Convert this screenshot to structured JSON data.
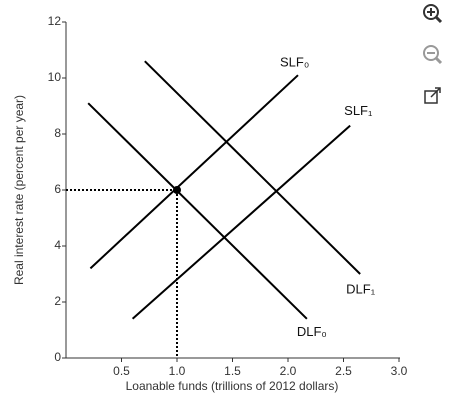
{
  "chart_data": {
    "type": "line",
    "x_label": "Loanable funds (trillions of 2012 dollars)",
    "y_label": "Real interest rate (percent per year)",
    "xlim": [
      0,
      3
    ],
    "ylim": [
      0,
      12
    ],
    "xticks": [
      0.5,
      {
        "value": 1,
        "label": "1.0"
      },
      1.5,
      {
        "value": 2,
        "label": "2.0"
      },
      2.5,
      {
        "value": 3,
        "label": "3.0"
      }
    ],
    "yticks": [
      0,
      2,
      4,
      6,
      8,
      10,
      12
    ],
    "color": "#000000",
    "series": [
      {
        "name": "SLF₀",
        "x": [
          0.22,
          2.09
        ],
        "values": [
          3.2,
          10.1
        ]
      },
      {
        "name": "SLF₁",
        "x": [
          0.6,
          2.56
        ],
        "values": [
          1.4,
          8.3
        ]
      },
      {
        "name": "DLF₀",
        "x": [
          0.2,
          2.17
        ],
        "values": [
          9.1,
          1.4
        ]
      },
      {
        "name": "DLF₁",
        "x": [
          0.71,
          2.65
        ],
        "values": [
          10.6,
          3.0
        ]
      }
    ],
    "equilibrium": {
      "x": 1,
      "y": 6
    }
  }
}
